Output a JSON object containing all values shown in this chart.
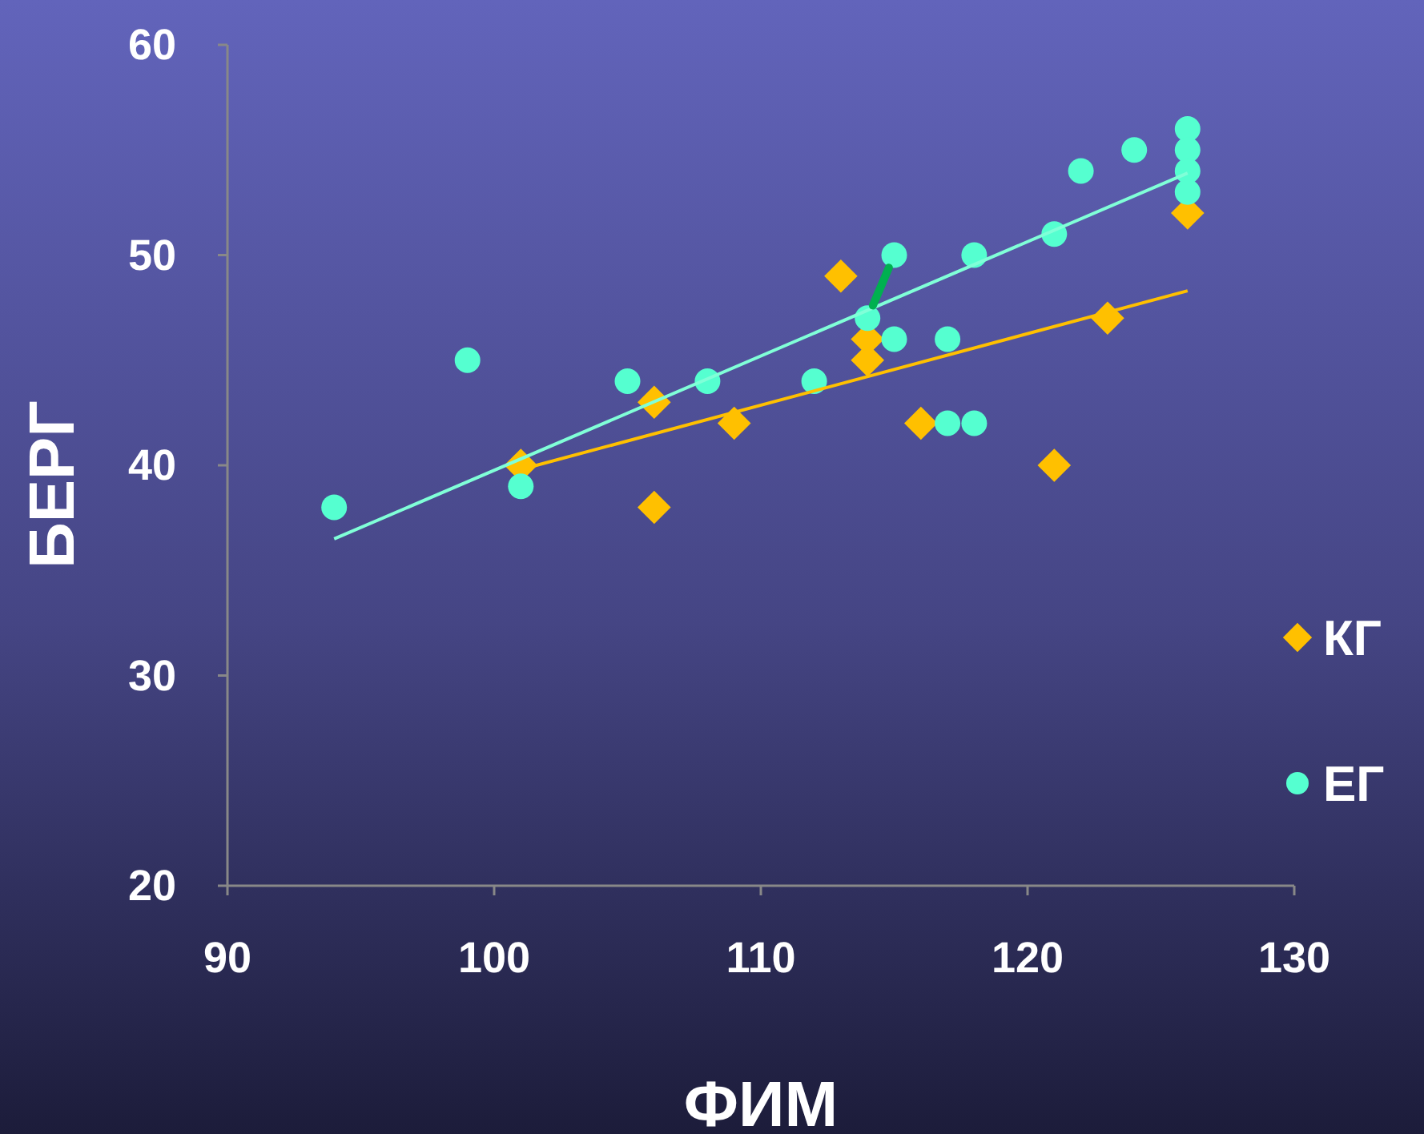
{
  "chart_data": {
    "type": "scatter",
    "xlabel": "ФИМ",
    "ylabel": "БЕРГ",
    "xlim": [
      90,
      130
    ],
    "xticks": [
      90,
      100,
      110,
      120,
      130
    ],
    "ylim": [
      20,
      60
    ],
    "yticks": [
      20,
      30,
      40,
      50,
      60
    ],
    "grid": false,
    "legend": "right",
    "series": [
      {
        "name": "КГ",
        "color": "#ffc000",
        "marker": "diamond",
        "x": [
          101,
          106,
          106,
          109,
          113,
          114,
          114,
          116,
          121,
          123,
          126
        ],
        "values": [
          40,
          43,
          38,
          42,
          49,
          46,
          45,
          42,
          40,
          47,
          52
        ]
      },
      {
        "name": "ЕГ",
        "color": "#55ffd0",
        "marker": "circle",
        "x": [
          94,
          99,
          101,
          105,
          108,
          112,
          114,
          115,
          115,
          117,
          117,
          118,
          118,
          121,
          122,
          124,
          126,
          126,
          126,
          126
        ],
        "values": [
          38,
          45,
          39,
          44,
          44,
          44,
          47,
          50,
          46,
          46,
          42,
          42,
          50,
          51,
          54,
          55,
          56,
          55,
          54,
          53
        ]
      },
      {
        "type": "line",
        "color": "#ffc000",
        "marker": "none",
        "x": [
          101,
          126
        ],
        "values": [
          39.8,
          48.3
        ]
      },
      {
        "type": "line",
        "color": "#80ffd8",
        "marker": "none",
        "x": [
          94,
          126
        ],
        "values": [
          36.5,
          53.9
        ]
      }
    ]
  }
}
